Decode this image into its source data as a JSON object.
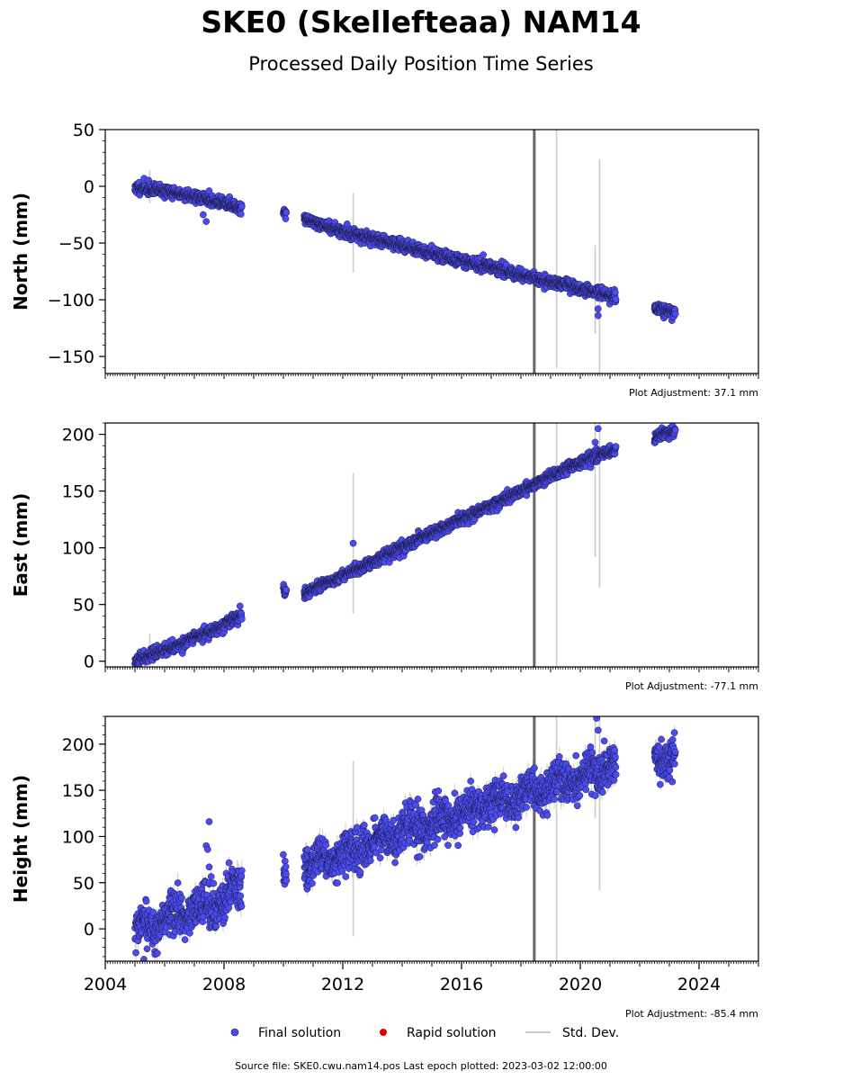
{
  "header": {
    "title": "SKE0 (Skellefteaa) NAM14",
    "subtitle": "Processed Daily Position Time Series"
  },
  "legend": {
    "final_label": "Final solution",
    "rapid_label": "Rapid solution",
    "std_label": "Std. Dev."
  },
  "footer": {
    "source_text": "Source file: SKE0.cwu.nam14.pos  Last epoch plotted: 2023-03-02 12:00:00"
  },
  "colors": {
    "final": "#4b4bf0",
    "final_edge": "#1a1a40",
    "rapid": "#dd0000",
    "std": "#cccccc",
    "event_line": "#666666"
  },
  "chart_data": [
    {
      "type": "scatter",
      "ylabel": "North (mm)",
      "adjustment_label": "Plot Adjustment: 37.1 mm",
      "xlim": [
        2004,
        2026
      ],
      "ylim": [
        -165,
        50
      ],
      "yticks": [
        50,
        0,
        -50,
        -100,
        -150
      ],
      "yticklabels": [
        "50",
        "0",
        "−50",
        "−100",
        "−150"
      ],
      "segments": [
        {
          "x": [
            2005.0,
            2006.0,
            2007.0,
            2008.0,
            2008.6
          ],
          "y": [
            -1,
            -4,
            -9,
            -15,
            -19
          ]
        },
        {
          "x": [
            2010.0,
            2010.1
          ],
          "y": [
            -22,
            -24
          ]
        },
        {
          "x": [
            2010.7,
            2012.0,
            2014.0,
            2016.0,
            2018.0,
            2019.0,
            2020.0,
            2021.2
          ],
          "y": [
            -28,
            -40,
            -52,
            -65,
            -78,
            -84,
            -90,
            -98
          ]
        },
        {
          "x": [
            2022.5,
            2023.2
          ],
          "y": [
            -108,
            -111
          ]
        }
      ],
      "outliers": [
        {
          "x": 2007.4,
          "y": -31
        },
        {
          "x": 2007.3,
          "y": -25
        },
        {
          "x": 2007.5,
          "y": -4
        },
        {
          "x": 2020.6,
          "y": -108
        },
        {
          "x": 2020.6,
          "y": -114
        }
      ],
      "std_devs": [
        {
          "x": 2005.5,
          "lo": -15,
          "hi": 14
        },
        {
          "x": 2012.35,
          "lo": -76,
          "hi": -6
        },
        {
          "x": 2019.2,
          "lo": -160,
          "hi": 50
        },
        {
          "x": 2020.5,
          "lo": -130,
          "hi": -52
        },
        {
          "x": 2020.65,
          "lo": -165,
          "hi": 24
        }
      ],
      "scatter_mm": 2.5,
      "seed": 11
    },
    {
      "type": "scatter",
      "ylabel": "East (mm)",
      "adjustment_label": "Plot Adjustment: -77.1 mm",
      "xlim": [
        2004,
        2026
      ],
      "ylim": [
        -5,
        210
      ],
      "yticks": [
        200,
        150,
        100,
        50,
        0
      ],
      "yticklabels": [
        "200",
        "150",
        "100",
        "50",
        "0"
      ],
      "segments": [
        {
          "x": [
            2005.0,
            2006.0,
            2007.0,
            2008.0,
            2008.6
          ],
          "y": [
            1,
            10,
            20,
            32,
            41
          ]
        },
        {
          "x": [
            2010.0,
            2010.1
          ],
          "y": [
            62,
            61
          ]
        },
        {
          "x": [
            2010.7,
            2012.0,
            2014.0,
            2016.0,
            2018.0,
            2019.0,
            2020.0,
            2021.2
          ],
          "y": [
            60,
            75,
            100,
            125,
            150,
            163,
            175,
            187
          ]
        },
        {
          "x": [
            2022.5,
            2023.2
          ],
          "y": [
            197,
            203
          ]
        }
      ],
      "outliers": [
        {
          "x": 2012.35,
          "y": 104
        },
        {
          "x": 2020.6,
          "y": 205
        },
        {
          "x": 2020.5,
          "y": 193
        }
      ],
      "std_devs": [
        {
          "x": 2005.5,
          "lo": -4,
          "hi": 24
        },
        {
          "x": 2012.35,
          "lo": 42,
          "hi": 166
        },
        {
          "x": 2019.2,
          "lo": -5,
          "hi": 210
        },
        {
          "x": 2020.5,
          "lo": 92,
          "hi": 210
        },
        {
          "x": 2020.65,
          "lo": 65,
          "hi": 210
        }
      ],
      "scatter_mm": 2.5,
      "seed": 23
    },
    {
      "type": "scatter",
      "ylabel": "Height (mm)",
      "adjustment_label": "Plot Adjustment: -85.4 mm",
      "xlim": [
        2004,
        2026
      ],
      "ylim": [
        -35,
        230
      ],
      "yticks": [
        200,
        150,
        100,
        50,
        0
      ],
      "yticklabels": [
        "200",
        "150",
        "100",
        "50",
        "0"
      ],
      "xticks": [
        2004,
        2008,
        2012,
        2016,
        2020,
        2024
      ],
      "xticklabels": [
        "2004",
        "2008",
        "2012",
        "2016",
        "2020",
        "2024"
      ],
      "segments": [
        {
          "x": [
            2005.0,
            2006.0,
            2007.0,
            2008.0,
            2008.6
          ],
          "y": [
            -5,
            10,
            20,
            30,
            50
          ]
        },
        {
          "x": [
            2010.0,
            2010.1
          ],
          "y": [
            55,
            58
          ]
        },
        {
          "x": [
            2010.7,
            2012.0,
            2014.0,
            2016.0,
            2018.0,
            2019.0,
            2020.0,
            2021.2
          ],
          "y": [
            70,
            80,
            105,
            125,
            145,
            155,
            165,
            175
          ]
        },
        {
          "x": [
            2022.5,
            2023.2
          ],
          "y": [
            180,
            185
          ]
        }
      ],
      "outliers": [
        {
          "x": 2007.5,
          "y": 116
        },
        {
          "x": 2007.4,
          "y": 90
        },
        {
          "x": 2007.45,
          "y": 86
        },
        {
          "x": 2007.5,
          "y": 67
        },
        {
          "x": 2005.3,
          "y": -33
        },
        {
          "x": 2020.55,
          "y": 228
        },
        {
          "x": 2020.6,
          "y": 215
        }
      ],
      "std_devs": [
        {
          "x": 2012.35,
          "lo": -8,
          "hi": 182
        },
        {
          "x": 2019.2,
          "lo": -35,
          "hi": 230
        },
        {
          "x": 2020.5,
          "lo": 120,
          "hi": 230
        },
        {
          "x": 2020.65,
          "lo": 42,
          "hi": 230
        }
      ],
      "scatter_mm": 11,
      "seed": 37
    }
  ],
  "event_line_x": 2018.45
}
